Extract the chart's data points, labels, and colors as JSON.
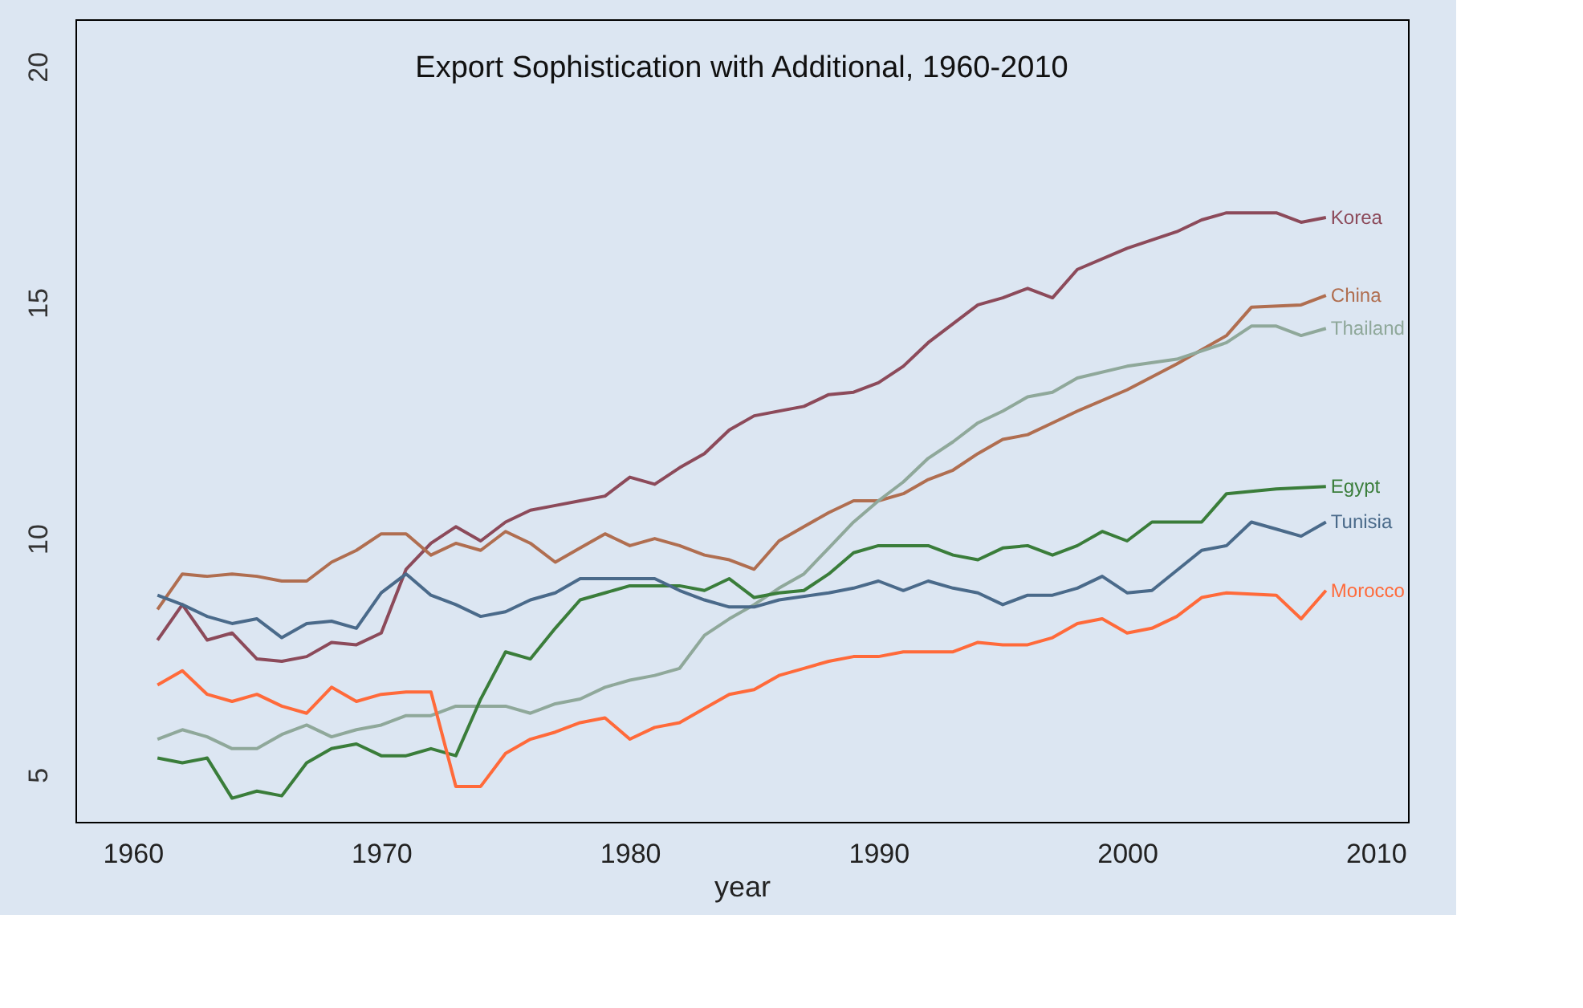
{
  "chart_data": {
    "type": "line",
    "title": "Export Sophistication with Additional, 1960-2010",
    "xlabel": "year",
    "xlim": [
      1957.7,
      2011.3
    ],
    "ylim": [
      4,
      21
    ],
    "xticks": [
      1960,
      1970,
      1980,
      1990,
      2000,
      2010
    ],
    "yticks": [
      5,
      10,
      15,
      20
    ],
    "grid": false,
    "legend": false,
    "marker": "none",
    "line_style": "solid",
    "series": [
      {
        "name": "Korea",
        "color": "#8c4a5a",
        "x": [
          1961,
          1962,
          1963,
          1964,
          1965,
          1966,
          1967,
          1968,
          1969,
          1970,
          1971,
          1972,
          1973,
          1974,
          1975,
          1976,
          1977,
          1978,
          1979,
          1980,
          1981,
          1982,
          1983,
          1984,
          1985,
          1987,
          1988,
          1989,
          1990,
          1991,
          1992,
          1993,
          1994,
          1995,
          1996,
          1997,
          1998,
          2000,
          2002,
          2003,
          2004,
          2006,
          2007,
          2008
        ],
        "values": [
          7.85,
          8.6,
          7.85,
          8.0,
          7.45,
          7.4,
          7.5,
          7.8,
          7.75,
          8.0,
          9.35,
          9.9,
          10.25,
          9.95,
          10.35,
          10.6,
          10.7,
          10.8,
          10.9,
          11.3,
          11.15,
          11.5,
          11.8,
          12.3,
          12.6,
          12.8,
          13.05,
          13.1,
          13.3,
          13.65,
          14.15,
          14.55,
          14.95,
          15.1,
          15.3,
          15.1,
          15.7,
          16.15,
          16.5,
          16.75,
          16.9,
          16.9,
          16.7,
          16.8
        ]
      },
      {
        "name": "China",
        "color": "#b06e50",
        "x": [
          1961,
          1962,
          1963,
          1964,
          1965,
          1966,
          1967,
          1968,
          1969,
          1970,
          1971,
          1972,
          1973,
          1974,
          1975,
          1976,
          1977,
          1978,
          1979,
          1980,
          1981,
          1982,
          1983,
          1984,
          1985,
          1986,
          1987,
          1988,
          1989,
          1990,
          1991,
          1992,
          1993,
          1994,
          1995,
          1996,
          1997,
          1998,
          2000,
          2002,
          2004,
          2005,
          2007,
          2008
        ],
        "values": [
          8.5,
          9.25,
          9.2,
          9.25,
          9.2,
          9.1,
          9.1,
          9.5,
          9.75,
          10.1,
          10.1,
          9.65,
          9.9,
          9.75,
          10.15,
          9.9,
          9.5,
          9.8,
          10.1,
          9.85,
          10.0,
          9.85,
          9.65,
          9.55,
          9.35,
          9.95,
          10.25,
          10.55,
          10.8,
          10.8,
          10.95,
          11.25,
          11.45,
          11.8,
          12.1,
          12.2,
          12.45,
          12.7,
          13.15,
          13.7,
          14.3,
          14.9,
          14.95,
          15.15
        ]
      },
      {
        "name": "Thailand",
        "color": "#8fa89a",
        "x": [
          1961,
          1962,
          1963,
          1964,
          1965,
          1966,
          1967,
          1968,
          1969,
          1970,
          1971,
          1972,
          1973,
          1975,
          1976,
          1977,
          1978,
          1979,
          1980,
          1981,
          1982,
          1983,
          1984,
          1985,
          1986,
          1987,
          1988,
          1989,
          1990,
          1991,
          1992,
          1993,
          1994,
          1995,
          1996,
          1997,
          1998,
          2000,
          2002,
          2004,
          2005,
          2006,
          2007,
          2008
        ],
        "values": [
          5.75,
          5.95,
          5.8,
          5.55,
          5.55,
          5.85,
          6.05,
          5.8,
          5.95,
          6.05,
          6.25,
          6.25,
          6.45,
          6.45,
          6.3,
          6.5,
          6.6,
          6.85,
          7.0,
          7.1,
          7.25,
          7.95,
          8.3,
          8.6,
          8.95,
          9.25,
          9.8,
          10.35,
          10.8,
          11.2,
          11.7,
          12.05,
          12.45,
          12.7,
          13.0,
          13.1,
          13.4,
          13.65,
          13.8,
          14.15,
          14.5,
          14.5,
          14.3,
          14.45
        ]
      },
      {
        "name": "Egypt",
        "color": "#3a7d3a",
        "x": [
          1961,
          1962,
          1963,
          1964,
          1965,
          1966,
          1967,
          1968,
          1969,
          1970,
          1971,
          1972,
          1973,
          1974,
          1975,
          1976,
          1977,
          1978,
          1979,
          1980,
          1982,
          1983,
          1984,
          1985,
          1986,
          1987,
          1988,
          1989,
          1990,
          1992,
          1993,
          1994,
          1995,
          1996,
          1997,
          1998,
          1999,
          2000,
          2001,
          2003,
          2004,
          2006,
          2008
        ],
        "values": [
          5.35,
          5.25,
          5.35,
          4.5,
          4.65,
          4.55,
          5.25,
          5.55,
          5.65,
          5.4,
          5.4,
          5.55,
          5.4,
          6.6,
          7.6,
          7.45,
          8.1,
          8.7,
          8.85,
          9.0,
          9.0,
          8.9,
          9.15,
          8.75,
          8.85,
          8.9,
          9.25,
          9.7,
          9.85,
          9.85,
          9.65,
          9.55,
          9.8,
          9.85,
          9.65,
          9.85,
          10.15,
          9.95,
          10.35,
          10.35,
          10.95,
          11.05,
          11.1
        ]
      },
      {
        "name": "Tunisia",
        "color": "#4a6a8a",
        "x": [
          1961,
          1962,
          1963,
          1964,
          1965,
          1966,
          1967,
          1968,
          1969,
          1970,
          1971,
          1972,
          1973,
          1974,
          1975,
          1976,
          1977,
          1978,
          1979,
          1981,
          1982,
          1983,
          1984,
          1985,
          1986,
          1988,
          1989,
          1990,
          1991,
          1992,
          1993,
          1994,
          1995,
          1996,
          1997,
          1998,
          1999,
          2000,
          2001,
          2003,
          2004,
          2005,
          2006,
          2007,
          2008
        ],
        "values": [
          8.8,
          8.6,
          8.35,
          8.2,
          8.3,
          7.9,
          8.2,
          8.25,
          8.1,
          8.85,
          9.25,
          8.8,
          8.6,
          8.35,
          8.45,
          8.7,
          8.85,
          9.15,
          9.15,
          9.15,
          8.9,
          8.7,
          8.55,
          8.55,
          8.7,
          8.85,
          8.95,
          9.1,
          8.9,
          9.1,
          8.95,
          8.85,
          8.6,
          8.8,
          8.8,
          8.95,
          9.2,
          8.85,
          8.9,
          9.75,
          9.85,
          10.35,
          10.2,
          10.05,
          10.35
        ]
      },
      {
        "name": "Morocco",
        "color": "#ff6a3a",
        "x": [
          1961,
          1962,
          1963,
          1964,
          1965,
          1966,
          1967,
          1968,
          1969,
          1970,
          1971,
          1972,
          1973,
          1974,
          1975,
          1976,
          1977,
          1978,
          1979,
          1980,
          1981,
          1982,
          1983,
          1984,
          1985,
          1986,
          1987,
          1988,
          1989,
          1990,
          1991,
          1993,
          1994,
          1995,
          1996,
          1997,
          1998,
          1999,
          2000,
          2001,
          2002,
          2003,
          2004,
          2006,
          2007,
          2008
        ],
        "values": [
          6.9,
          7.2,
          6.7,
          6.55,
          6.7,
          6.45,
          6.3,
          6.85,
          6.55,
          6.7,
          6.75,
          6.75,
          4.75,
          4.75,
          5.45,
          5.75,
          5.9,
          6.1,
          6.2,
          5.75,
          6.0,
          6.1,
          6.4,
          6.7,
          6.8,
          7.1,
          7.25,
          7.4,
          7.5,
          7.5,
          7.6,
          7.6,
          7.8,
          7.75,
          7.75,
          7.9,
          8.2,
          8.3,
          8.0,
          8.1,
          8.35,
          8.75,
          8.85,
          8.8,
          8.3,
          8.9
        ]
      }
    ]
  }
}
